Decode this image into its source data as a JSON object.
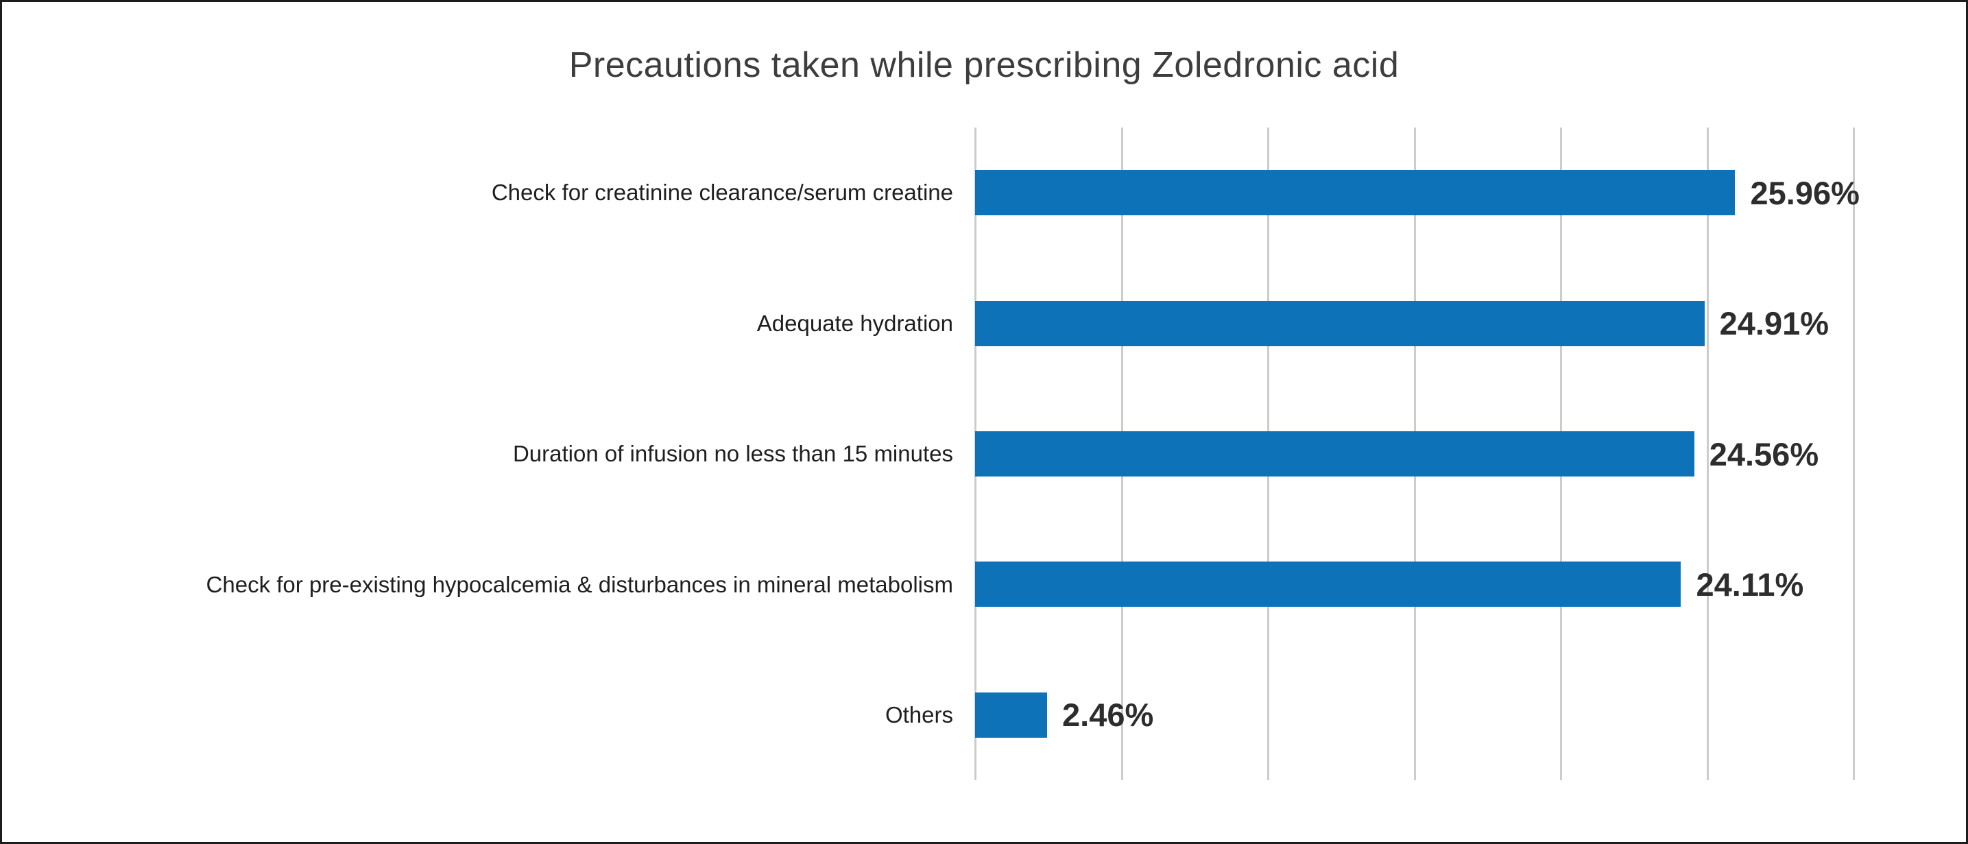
{
  "chart_data": {
    "type": "bar",
    "orientation": "horizontal",
    "title": "Precautions taken while prescribing Zoledronic acid",
    "categories": [
      "Check for creatinine clearance/serum creatine",
      "Adequate hydration",
      "Duration of infusion no less than 15 minutes",
      "Check for pre-existing hypocalcemia & disturbances in mineral metabolism",
      "Others"
    ],
    "values": [
      25.96,
      24.91,
      24.56,
      24.11,
      2.46
    ],
    "labels": [
      "25.96%",
      "24.91%",
      "24.56%",
      "24.11%",
      "2.46%"
    ],
    "xlabel": "",
    "ylabel": "",
    "xlim": [
      0,
      30
    ],
    "gridline_step": 5,
    "grid": "vertical",
    "legend": "none",
    "bar_color": "#0e72b9",
    "grid_color": "#cccccc",
    "title_color": "#3d3d3d",
    "value_label_color": "#2d2d2d"
  }
}
